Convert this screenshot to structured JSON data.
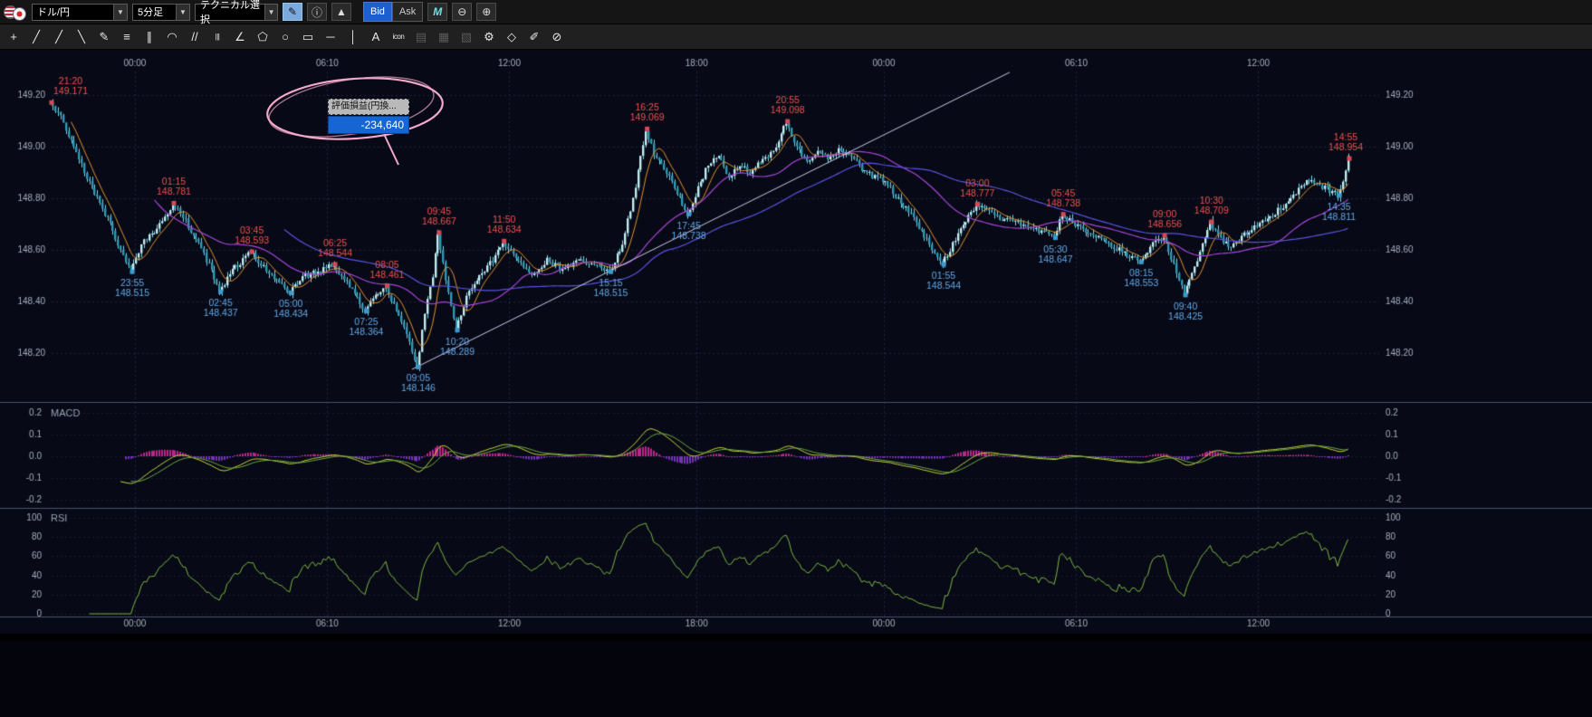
{
  "toolbar": {
    "pair": {
      "value": "ドル/円"
    },
    "timeframe": {
      "value": "5分足"
    },
    "technical": {
      "value": "テクニカル選択"
    },
    "draw_button": "✎",
    "info_button": "ⓘ",
    "area_chart_button": "▲",
    "bid": "Bid",
    "ask": "Ask",
    "mchart_button": "M",
    "zoom_out": "⊖",
    "zoom_in": "⊕"
  },
  "drawbar": {
    "tools": [
      {
        "name": "crosshair-tool",
        "glyph": "+",
        "enabled": true
      },
      {
        "name": "trendline-tool",
        "glyph": "╱",
        "enabled": true
      },
      {
        "name": "ray-line-tool",
        "glyph": "╱",
        "enabled": true
      },
      {
        "name": "extended-line-tool",
        "glyph": "╲",
        "enabled": true
      },
      {
        "name": "freehand-pencil-tool",
        "glyph": "✎",
        "enabled": true
      },
      {
        "name": "horizontal-lines-tool",
        "glyph": "≡",
        "enabled": true
      },
      {
        "name": "parallel-lines-tool",
        "glyph": "∥",
        "enabled": true
      },
      {
        "name": "fibonacci-arc-tool",
        "glyph": "◠",
        "enabled": true
      },
      {
        "name": "gann-fan-tool",
        "glyph": "//",
        "enabled": true
      },
      {
        "name": "vertical-lines-tool",
        "glyph": "|||",
        "enabled": true
      },
      {
        "name": "angle-line-tool",
        "glyph": "∠",
        "enabled": true
      },
      {
        "name": "pentagon-tool",
        "glyph": "⬠",
        "enabled": true
      },
      {
        "name": "ellipse-tool",
        "glyph": "○",
        "enabled": true
      },
      {
        "name": "rectangle-tool",
        "glyph": "▭",
        "enabled": true
      },
      {
        "name": "horizontal-line-tool",
        "glyph": "─",
        "enabled": true
      },
      {
        "name": "vertical-line-tool",
        "glyph": "│",
        "enabled": true
      },
      {
        "name": "text-tool",
        "glyph": "A",
        "enabled": true
      },
      {
        "name": "icon-stamp-tool",
        "glyph": "icon",
        "enabled": true
      },
      {
        "name": "memo-tool",
        "glyph": "▤",
        "enabled": false
      },
      {
        "name": "clipboard-tool",
        "glyph": "▦",
        "enabled": false
      },
      {
        "name": "layers-tool",
        "glyph": "▧",
        "enabled": false
      },
      {
        "name": "wrench-tool",
        "glyph": "⚙",
        "enabled": true
      },
      {
        "name": "eraser-tool",
        "glyph": "◇",
        "enabled": true
      },
      {
        "name": "settings-pencil-tool",
        "glyph": "✐",
        "enabled": true
      },
      {
        "name": "clear-all-tool",
        "glyph": "⊘",
        "enabled": true
      }
    ]
  },
  "chart": {
    "tooltip": {
      "title": "評価損益(円換...",
      "value": "-234,640"
    },
    "colors": {
      "bg": "#070a16",
      "candle_up": "#c2ecf0",
      "candle_down": "#2f98b4",
      "wick": "#7ecfe0",
      "ma_fast": "#e09030",
      "ma_mid": "#a844d8",
      "ma_slow": "#5a52e0",
      "high_label": "#ef5350",
      "low_label": "#64a8e8",
      "high_marker": "#d84856",
      "low_marker": "#3b9bd0",
      "trendline": "#c8c8e8",
      "macd_line": "#c9cf3a",
      "signal_line": "#6da83e",
      "hist_pos": "#d02898",
      "hist_neg": "#8038c8",
      "rsi_line": "#7cb342",
      "grid": "#1d2440",
      "axis_text": "#a6aec0",
      "panel_label": "#98a0b2",
      "divider": "#49506a"
    }
  },
  "panels": {
    "macd": {
      "label": "MACD",
      "ticks": [
        {
          "label": "0.2",
          "v": 0.2
        },
        {
          "label": "0.1",
          "v": 0.1
        },
        {
          "label": "0.0",
          "v": 0
        },
        {
          "label": "-0.1",
          "v": -0.1
        },
        {
          "label": "-0.2",
          "v": -0.2
        }
      ]
    },
    "rsi": {
      "label": "RSI",
      "ticks": [
        {
          "label": "100",
          "v": 100
        },
        {
          "label": "80",
          "v": 80
        },
        {
          "label": "60",
          "v": 60
        },
        {
          "label": "40",
          "v": 40
        },
        {
          "label": "20",
          "v": 20
        },
        {
          "label": "0",
          "v": 0
        }
      ]
    }
  },
  "chart_data": {
    "type": "candlestick",
    "symbol": "ドル/円",
    "interval": "5分足",
    "quote_side": "Bid",
    "ylim": [
      148.07,
      149.31
    ],
    "price_ticks": [
      {
        "label": "149.20",
        "p": 149.2
      },
      {
        "label": "149.00",
        "p": 149.0
      },
      {
        "label": "148.80",
        "p": 148.8
      },
      {
        "label": "148.60",
        "p": 148.6
      },
      {
        "label": "148.40",
        "p": 148.4
      },
      {
        "label": "148.20",
        "p": 148.2
      }
    ],
    "time_ticks": [
      {
        "label": "00:00",
        "t": 160
      },
      {
        "label": "06:10",
        "t": 530
      },
      {
        "label": "12:00",
        "t": 880
      },
      {
        "label": "18:00",
        "t": 1240
      },
      {
        "label": "00:00",
        "t": 1600
      },
      {
        "label": "06:10",
        "t": 1970
      },
      {
        "label": "12:00",
        "t": 2320
      }
    ],
    "total_minutes": 2495,
    "candle_minutes": 5,
    "price_path": [
      [
        0,
        149.171
      ],
      [
        20,
        149.12
      ],
      [
        45,
        149.0
      ],
      [
        75,
        148.86
      ],
      [
        110,
        148.72
      ],
      [
        140,
        148.58
      ],
      [
        155,
        148.515
      ],
      [
        175,
        148.62
      ],
      [
        205,
        148.68
      ],
      [
        235,
        148.781
      ],
      [
        255,
        148.73
      ],
      [
        285,
        148.62
      ],
      [
        310,
        148.52
      ],
      [
        325,
        148.437
      ],
      [
        350,
        148.52
      ],
      [
        385,
        148.593
      ],
      [
        415,
        148.52
      ],
      [
        440,
        148.47
      ],
      [
        460,
        148.434
      ],
      [
        490,
        148.5
      ],
      [
        520,
        148.52
      ],
      [
        545,
        148.544
      ],
      [
        570,
        148.47
      ],
      [
        605,
        148.364
      ],
      [
        625,
        148.43
      ],
      [
        645,
        148.461
      ],
      [
        665,
        148.36
      ],
      [
        685,
        148.27
      ],
      [
        705,
        148.146
      ],
      [
        720,
        148.35
      ],
      [
        735,
        148.5
      ],
      [
        745,
        148.667
      ],
      [
        760,
        148.48
      ],
      [
        780,
        148.289
      ],
      [
        800,
        148.42
      ],
      [
        825,
        148.5
      ],
      [
        850,
        148.56
      ],
      [
        870,
        148.634
      ],
      [
        895,
        148.56
      ],
      [
        925,
        148.5
      ],
      [
        955,
        148.56
      ],
      [
        985,
        148.52
      ],
      [
        1015,
        148.57
      ],
      [
        1045,
        148.54
      ],
      [
        1075,
        148.515
      ],
      [
        1100,
        148.62
      ],
      [
        1125,
        148.85
      ],
      [
        1145,
        149.069
      ],
      [
        1160,
        148.97
      ],
      [
        1185,
        148.9
      ],
      [
        1205,
        148.82
      ],
      [
        1225,
        148.738
      ],
      [
        1245,
        148.84
      ],
      [
        1265,
        148.93
      ],
      [
        1285,
        148.96
      ],
      [
        1305,
        148.88
      ],
      [
        1325,
        148.93
      ],
      [
        1345,
        148.9
      ],
      [
        1370,
        148.95
      ],
      [
        1395,
        148.99
      ],
      [
        1415,
        149.098
      ],
      [
        1435,
        149.0
      ],
      [
        1455,
        148.94
      ],
      [
        1475,
        148.99
      ],
      [
        1495,
        148.96
      ],
      [
        1515,
        148.99
      ],
      [
        1540,
        148.96
      ],
      [
        1565,
        148.9
      ],
      [
        1600,
        148.87
      ],
      [
        1630,
        148.8
      ],
      [
        1660,
        148.72
      ],
      [
        1690,
        148.62
      ],
      [
        1715,
        148.544
      ],
      [
        1745,
        148.66
      ],
      [
        1780,
        148.777
      ],
      [
        1815,
        148.73
      ],
      [
        1850,
        148.71
      ],
      [
        1885,
        148.69
      ],
      [
        1915,
        148.66
      ],
      [
        1930,
        148.647
      ],
      [
        1945,
        148.738
      ],
      [
        1975,
        148.69
      ],
      [
        2005,
        148.66
      ],
      [
        2040,
        148.62
      ],
      [
        2070,
        148.58
      ],
      [
        2095,
        148.553
      ],
      [
        2120,
        148.62
      ],
      [
        2140,
        148.656
      ],
      [
        2160,
        148.54
      ],
      [
        2180,
        148.425
      ],
      [
        2205,
        148.56
      ],
      [
        2230,
        148.709
      ],
      [
        2252,
        148.64
      ],
      [
        2270,
        148.61
      ],
      [
        2295,
        148.66
      ],
      [
        2320,
        148.7
      ],
      [
        2345,
        148.73
      ],
      [
        2370,
        148.77
      ],
      [
        2395,
        148.82
      ],
      [
        2415,
        148.87
      ],
      [
        2440,
        148.85
      ],
      [
        2460,
        148.83
      ],
      [
        2475,
        148.811
      ],
      [
        2488,
        148.89
      ],
      [
        2495,
        148.954
      ]
    ],
    "swings": [
      {
        "t": 0,
        "time": "21:20",
        "p": 149.171,
        "side": "high"
      },
      {
        "t": 155,
        "time": "23:55",
        "p": 148.515,
        "side": "low"
      },
      {
        "t": 235,
        "time": "01:15",
        "p": 148.781,
        "side": "high"
      },
      {
        "t": 325,
        "time": "02:45",
        "p": 148.437,
        "side": "low"
      },
      {
        "t": 385,
        "time": "03:45",
        "p": 148.593,
        "side": "high"
      },
      {
        "t": 460,
        "time": "05:00",
        "p": 148.434,
        "side": "low"
      },
      {
        "t": 545,
        "time": "06:25",
        "p": 148.544,
        "side": "high"
      },
      {
        "t": 605,
        "time": "07:25",
        "p": 148.364,
        "side": "low"
      },
      {
        "t": 645,
        "time": "08:05",
        "p": 148.461,
        "side": "high"
      },
      {
        "t": 705,
        "time": "09:05",
        "p": 148.146,
        "side": "low"
      },
      {
        "t": 745,
        "time": "09:45",
        "p": 148.667,
        "side": "high"
      },
      {
        "t": 780,
        "time": "10:20",
        "p": 148.289,
        "side": "low"
      },
      {
        "t": 870,
        "time": "11:50",
        "p": 148.634,
        "side": "high"
      },
      {
        "t": 1075,
        "time": "15:15",
        "p": 148.515,
        "side": "low"
      },
      {
        "t": 1145,
        "time": "16:25",
        "p": 149.069,
        "side": "high"
      },
      {
        "t": 1225,
        "time": "17:45",
        "p": 148.738,
        "side": "low"
      },
      {
        "t": 1415,
        "time": "20:55",
        "p": 149.098,
        "side": "high"
      },
      {
        "t": 1715,
        "time": "01:55",
        "p": 148.544,
        "side": "low"
      },
      {
        "t": 1780,
        "time": "03:00",
        "p": 148.777,
        "side": "high"
      },
      {
        "t": 1930,
        "time": "05:30",
        "p": 148.647,
        "side": "low"
      },
      {
        "t": 1945,
        "time": "05:45",
        "p": 148.738,
        "side": "high"
      },
      {
        "t": 2095,
        "time": "08:15",
        "p": 148.553,
        "side": "low"
      },
      {
        "t": 2140,
        "time": "09:00",
        "p": 148.656,
        "side": "high"
      },
      {
        "t": 2180,
        "time": "09:40",
        "p": 148.425,
        "side": "low"
      },
      {
        "t": 2230,
        "time": "10:30",
        "p": 148.709,
        "side": "high"
      },
      {
        "t": 2475,
        "time": "14:35",
        "p": 148.811,
        "side": "low"
      },
      {
        "t": 2495,
        "time": "14:55",
        "p": 148.954,
        "side": "high"
      }
    ],
    "trendline": {
      "t1": 693,
      "p1": 148.137,
      "t2": 1842,
      "p2": 149.288
    },
    "indicators": [
      {
        "name": "MACD",
        "range": [
          -0.2,
          0.2
        ]
      },
      {
        "name": "RSI",
        "range": [
          0,
          100
        ]
      }
    ]
  }
}
